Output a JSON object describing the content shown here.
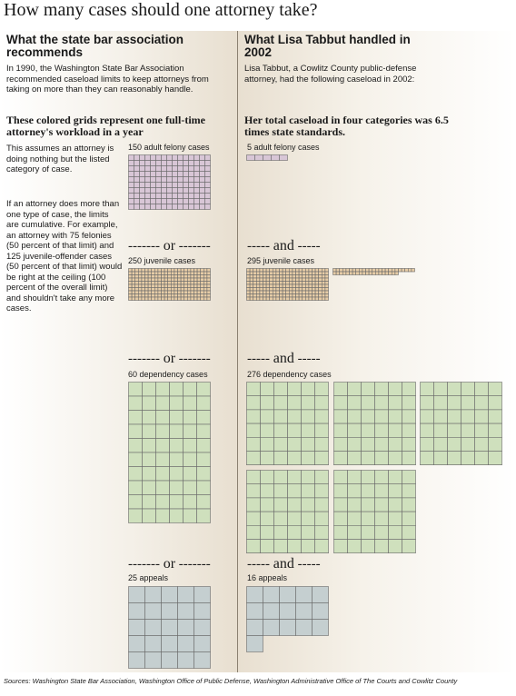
{
  "title": "How many cases should one attorney take?",
  "colors": {
    "felony": "#d8c6d6",
    "juvenile": "#e6cca6",
    "dependency": "#cfe0bd",
    "appeals": "#c5cfd0",
    "grid_line": "#6a6a6a"
  },
  "left": {
    "heading": "What the state bar association recommends",
    "intro": "In 1990, the Washington State Bar Association recommended caseload limits to keep attorneys from taking on more than they can reasonably handle.",
    "subheading": "These colored grids represent one full-time attorney's workload in a year",
    "note1": "This assumes an attorney is doing nothing but the listed category of case.",
    "note2": "If an attorney does more than one type of case, the limits are cumulative. For example, an attorney with 75 felonies (50 percent of that limit) and 125 juvenile-offender cases (50 percent of that limit) would be right at the ceiling (100 percent of the overall limit) and shouldn't take any more cases.",
    "sep_word": "or",
    "grids": [
      {
        "label": "150 adult felony cases",
        "count": 150,
        "category": "felony"
      },
      {
        "label": "250 juvenile cases",
        "count": 250,
        "category": "juvenile"
      },
      {
        "label": "60 dependency cases",
        "count": 60,
        "category": "dependency"
      },
      {
        "label": "25 appeals",
        "count": 25,
        "category": "appeals"
      }
    ]
  },
  "right": {
    "heading": "What Lisa Tabbut handled in 2002",
    "intro": "Lisa Tabbut, a Cowlitz County public-defense attorney, had the following caseload in 2002:",
    "subheading": "Her total caseload in four categories was 6.5 times state standards.",
    "sep_word": "and",
    "grids": [
      {
        "label": "5 adult felony cases",
        "count": 5,
        "category": "felony"
      },
      {
        "label": "295 juvenile cases",
        "count": 295,
        "category": "juvenile"
      },
      {
        "label": "276 dependency cases",
        "count": 276,
        "category": "dependency"
      },
      {
        "label": "16 appeals",
        "count": 16,
        "category": "appeals"
      }
    ]
  },
  "source": "Sources: Washington State Bar Association, Washington Office of Public Defense, Washington Administrative Office of The Courts and Cowlitz County"
}
